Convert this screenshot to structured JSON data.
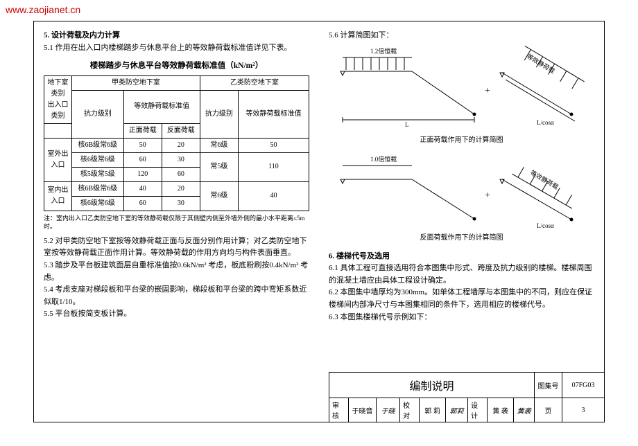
{
  "watermark": "www.zaojianet.cn",
  "left": {
    "s5": "5.  设计荷载及内力计算",
    "s51": "5.1  作用在出入口内楼梯踏步与休息平台上的等效静荷载标准值详见下表。",
    "table_caption": "楼梯踏步与休息平台等效静荷载标准值（kN/m²）",
    "col_headers": {
      "basement": "地下室类别",
      "entrance": "出入口类别",
      "type_a": "甲类防空地下室",
      "type_b": "乙类防空地下室",
      "resist_a": "抗力级别",
      "std_load": "等效静荷载标准值",
      "front": "正面荷载",
      "back": "反面荷载",
      "resist_b": "抗力级别",
      "std_b": "等效静荷载标准值"
    },
    "rows": [
      {
        "entry": "室外出入口",
        "level": "核6B级常6级",
        "f": "50",
        "b": "20",
        "blevel": "常6级",
        "bval": "50"
      },
      {
        "entry": "",
        "level": "核6级常6级",
        "f": "60",
        "b": "30",
        "blevel": "常5级",
        "bval": "110"
      },
      {
        "entry": "",
        "level": "核5级常5级",
        "f": "120",
        "b": "60",
        "blevel": "",
        "bval": ""
      },
      {
        "entry": "室内出入口",
        "level": "核6B级常6级",
        "f": "40",
        "b": "20",
        "blevel": "常6级",
        "bval": "40"
      },
      {
        "entry": "",
        "level": "核6级常6级",
        "f": "60",
        "b": "30",
        "blevel": "",
        "bval": ""
      }
    ],
    "note": "注：室内出入口乙类防空地下室的等效静荷载仅限于其侧壁内侧至外墙外侧的最小水平距离≤5m时。",
    "s52": "5.2  对甲类防空地下室按等效静荷载正面与反面分别作用计算；对乙类防空地下室按等效静荷载正面作用计算。等效静荷载的作用方向均与构件表面垂直。",
    "s53": "5.3  踏步及平台板建筑面层自重标准值按0.6kN/m² 考虑，板底粉刷按0.4kN/m² 考虑。",
    "s54": "5.4  考虑支座对梯段板和平台梁的嵌固影响，梯段板和平台梁的跨中弯矩系数近似取1/10。",
    "s55": "5.5  平台板按简支板计算。"
  },
  "right": {
    "s56": "5.6  计算简图如下：",
    "diag1": {
      "load1": "1.2倍恒载",
      "load2": "等效静荷载",
      "dim1": "L",
      "dim2": "L/cosα",
      "caption": "正面荷载作用下的计算简图"
    },
    "diag2": {
      "load1": "1.0倍恒载",
      "load2": "等效静荷载",
      "dim2": "L/cosα",
      "caption": "反面荷载作用下的计算简图"
    },
    "s6": "6.  楼梯代号及选用",
    "s61": "6.1  具体工程可直接选用符合本图集中形式、跨度及抗力级别的楼梯。楼梯周围的混凝土墙应由具体工程设计确定。",
    "s62": "6.2  本图集中墙厚均为300mm。如单体工程墙厚与本图集中的不同，则应在保证楼梯间内部净尺寸与本图集相同的条件下，选用相应的楼梯代号。",
    "s63": "6.3  本图集楼梯代号示例如下："
  },
  "titleblock": {
    "title": "编制说明",
    "atlas_label": "图集号",
    "atlas_no": "07FG03",
    "page_label": "页",
    "page_no": "3",
    "review": "审核",
    "review_name": "于晓音",
    "proof": "校对",
    "proof_name": "郭 莉",
    "design": "设计",
    "design_name": "黄 袭"
  },
  "colors": {
    "text": "#000000",
    "border": "#000000",
    "watermark": "#cc0000",
    "bg": "#ffffff"
  }
}
